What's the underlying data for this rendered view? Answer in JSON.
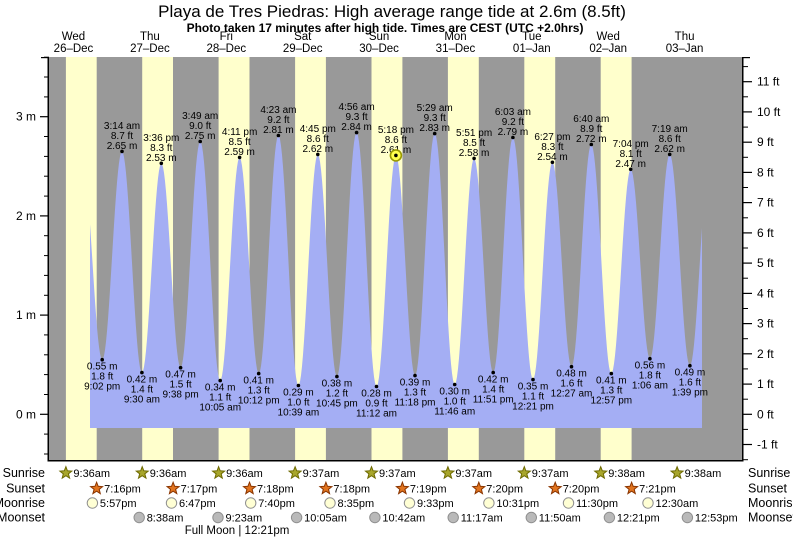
{
  "title": "Playa de Tres Piedras: High average range tide at 2.6m (8.5ft)",
  "subtitle": "Photo taken 17 minutes after high tide. Times are CEST (UTC +2.0hrs)",
  "legend": {
    "sunrise_label": "Sunrise",
    "sunset_label": "Sunset",
    "moonrise_label": "Moonrise",
    "moonset_label": "Moonset"
  },
  "chart_data": {
    "type": "area",
    "title": "Playa de Tres Piedras: High average range tide at 2.6m (8.5ft)",
    "subtitle": "Photo taken 17 minutes after high tide. Times are CEST (UTC +2.0hrs)",
    "y_axis_left": {
      "unit": "m",
      "major_ticks": [
        0,
        1,
        2,
        3
      ],
      "minor_step": 0.2,
      "range": [
        -0.46,
        3.6
      ]
    },
    "y_axis_right": {
      "unit": "ft",
      "major_ticks": [
        -1,
        0,
        1,
        2,
        3,
        4,
        5,
        6,
        7,
        8,
        9,
        10,
        11
      ],
      "minor_step": 0.5,
      "range": [
        -1.5,
        11.8
      ]
    },
    "days": [
      {
        "name": "Wed",
        "date": "26–Dec"
      },
      {
        "name": "Thu",
        "date": "27–Dec"
      },
      {
        "name": "Fri",
        "date": "28–Dec"
      },
      {
        "name": "Sat",
        "date": "29–Dec"
      },
      {
        "name": "Sun",
        "date": "30–Dec"
      },
      {
        "name": "Mon",
        "date": "31–Dec"
      },
      {
        "name": "Tue",
        "date": "01–Jan"
      },
      {
        "name": "Wed",
        "date": "02–Jan"
      },
      {
        "name": "Thu",
        "date": "03–Jan"
      }
    ],
    "tides": [
      {
        "type": "low",
        "day": 0,
        "time": "9:02 pm",
        "m": 0.55,
        "ft": 1.8
      },
      {
        "type": "high",
        "day": 1,
        "time": "3:14 am",
        "m": 2.65,
        "ft": 8.7
      },
      {
        "type": "low",
        "day": 1,
        "time": "9:30 am",
        "m": 0.42,
        "ft": 1.4
      },
      {
        "type": "high",
        "day": 1,
        "time": "3:36 pm",
        "m": 2.53,
        "ft": 8.3
      },
      {
        "type": "low",
        "day": 1,
        "time": "9:38 pm",
        "m": 0.47,
        "ft": 1.5
      },
      {
        "type": "high",
        "day": 2,
        "time": "3:49 am",
        "m": 2.75,
        "ft": 9.0
      },
      {
        "type": "low",
        "day": 2,
        "time": "10:05 am",
        "m": 0.34,
        "ft": 1.1
      },
      {
        "type": "high",
        "day": 2,
        "time": "4:11 pm",
        "m": 2.59,
        "ft": 8.5
      },
      {
        "type": "low",
        "day": 2,
        "time": "10:12 pm",
        "m": 0.41,
        "ft": 1.3
      },
      {
        "type": "high",
        "day": 3,
        "time": "4:23 am",
        "m": 2.81,
        "ft": 9.2
      },
      {
        "type": "low",
        "day": 3,
        "time": "10:39 am",
        "m": 0.29,
        "ft": 1.0
      },
      {
        "type": "high",
        "day": 3,
        "time": "4:45 pm",
        "m": 2.62,
        "ft": 8.6
      },
      {
        "type": "low",
        "day": 3,
        "time": "10:45 pm",
        "m": 0.38,
        "ft": 1.2
      },
      {
        "type": "high",
        "day": 4,
        "time": "4:56 am",
        "m": 2.84,
        "ft": 9.3
      },
      {
        "type": "low",
        "day": 4,
        "time": "11:12 am",
        "m": 0.28,
        "ft": 0.9
      },
      {
        "type": "high",
        "day": 4,
        "time": "5:18 pm",
        "m": 2.61,
        "ft": 8.6,
        "current": true
      },
      {
        "type": "low",
        "day": 4,
        "time": "11:18 pm",
        "m": 0.39,
        "ft": 1.3
      },
      {
        "type": "high",
        "day": 5,
        "time": "5:29 am",
        "m": 2.83,
        "ft": 9.3
      },
      {
        "type": "low",
        "day": 5,
        "time": "11:46 am",
        "m": 0.3,
        "ft": 1.0
      },
      {
        "type": "high",
        "day": 5,
        "time": "5:51 pm",
        "m": 2.58,
        "ft": 8.5
      },
      {
        "type": "low",
        "day": 5,
        "time": "11:51 pm",
        "m": 0.42,
        "ft": 1.4
      },
      {
        "type": "high",
        "day": 6,
        "time": "6:03 am",
        "m": 2.79,
        "ft": 9.2
      },
      {
        "type": "low",
        "day": 6,
        "time": "12:21 pm",
        "m": 0.35,
        "ft": 1.1
      },
      {
        "type": "high",
        "day": 6,
        "time": "6:27 pm",
        "m": 2.54,
        "ft": 8.3
      },
      {
        "type": "low",
        "day": 7,
        "time": "12:27 am",
        "m": 0.48,
        "ft": 1.6
      },
      {
        "type": "high",
        "day": 7,
        "time": "6:40 am",
        "m": 2.72,
        "ft": 8.9
      },
      {
        "type": "low",
        "day": 7,
        "time": "12:57 pm",
        "m": 0.41,
        "ft": 1.3
      },
      {
        "type": "high",
        "day": 7,
        "time": "7:04 pm",
        "m": 2.47,
        "ft": 8.1
      },
      {
        "type": "low",
        "day": 8,
        "time": "1:06 am",
        "m": 0.56,
        "ft": 1.8
      },
      {
        "type": "high",
        "day": 8,
        "time": "7:19 am",
        "m": 2.62,
        "ft": 8.6
      },
      {
        "type": "low",
        "day": 8,
        "time": "1:39 pm",
        "m": 0.49,
        "ft": 1.6
      }
    ],
    "sun_moon": {
      "sunrise": [
        {
          "day": 0,
          "time": "9:36am"
        },
        {
          "day": 1,
          "time": "9:36am"
        },
        {
          "day": 2,
          "time": "9:36am"
        },
        {
          "day": 3,
          "time": "9:37am"
        },
        {
          "day": 4,
          "time": "9:37am"
        },
        {
          "day": 5,
          "time": "9:37am"
        },
        {
          "day": 6,
          "time": "9:37am"
        },
        {
          "day": 7,
          "time": "9:38am"
        },
        {
          "day": 8,
          "time": "9:38am"
        }
      ],
      "sunset": [
        {
          "day": 0,
          "time": "7:16pm"
        },
        {
          "day": 1,
          "time": "7:17pm"
        },
        {
          "day": 2,
          "time": "7:18pm"
        },
        {
          "day": 3,
          "time": "7:18pm"
        },
        {
          "day": 4,
          "time": "7:19pm"
        },
        {
          "day": 5,
          "time": "7:20pm"
        },
        {
          "day": 6,
          "time": "7:20pm"
        },
        {
          "day": 7,
          "time": "7:21pm"
        }
      ],
      "moonrise": [
        {
          "day": 0,
          "time": "5:57pm"
        },
        {
          "day": 1,
          "time": "6:47pm"
        },
        {
          "day": 2,
          "time": "7:40pm"
        },
        {
          "day": 3,
          "time": "8:35pm"
        },
        {
          "day": 4,
          "time": "9:33pm"
        },
        {
          "day": 5,
          "time": "10:31pm"
        },
        {
          "day": 6,
          "time": "11:30pm"
        },
        {
          "day": 8,
          "time": "12:30am"
        }
      ],
      "moonset": [
        {
          "day": 1,
          "time": "8:38am"
        },
        {
          "day": 2,
          "time": "9:23am"
        },
        {
          "day": 3,
          "time": "10:05am"
        },
        {
          "day": 4,
          "time": "10:42am"
        },
        {
          "day": 5,
          "time": "11:17am"
        },
        {
          "day": 6,
          "time": "11:50am"
        },
        {
          "day": 7,
          "time": "12:21pm"
        },
        {
          "day": 8,
          "time": "12:53pm"
        }
      ],
      "full_moon": "Full Moon | 12:21pm"
    },
    "colors": {
      "night_band": "#999999",
      "day_band": "#ffffcc",
      "tide_fill": "#a4aef4",
      "day_label": "#ec1c00",
      "sunrise_star": "#a8a62b",
      "sunrise_star_edge": "#6e6a00",
      "sunset_star": "#e1741f",
      "sunset_star_edge": "#8a3500",
      "moonrise_circle": "#ffffd4",
      "moonset_circle": "#b9b9b9",
      "moon_circle_edge": "#8f8f8f",
      "current_marker": "#ffff4d",
      "current_marker_edge": "#9a9a00"
    }
  }
}
